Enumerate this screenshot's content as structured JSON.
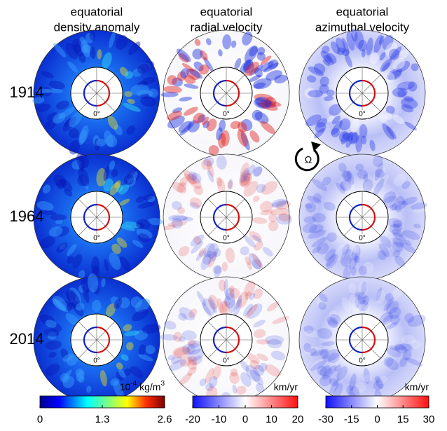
{
  "columns": [
    {
      "title": [
        "equatorial",
        "density anomaly"
      ]
    },
    {
      "title": [
        "equatorial",
        "radial velocity"
      ]
    },
    {
      "title": [
        "equatorial",
        "azimuthal velocity"
      ]
    }
  ],
  "rows": [
    "1914",
    "1964",
    "2014"
  ],
  "inner_label": "0°",
  "rotation_label": "Ω",
  "colorbars": [
    {
      "unit": [
        "10",
        "-4",
        " kg/m",
        "3"
      ],
      "ticks": [
        0,
        1.3,
        2.6
      ]
    },
    {
      "unit": [
        "km/yr"
      ],
      "ticks": [
        -20,
        -10,
        0,
        10,
        20
      ]
    },
    {
      "unit": [
        "km/yr"
      ],
      "ticks": [
        -30,
        -15,
        0,
        15,
        30
      ]
    }
  ]
}
